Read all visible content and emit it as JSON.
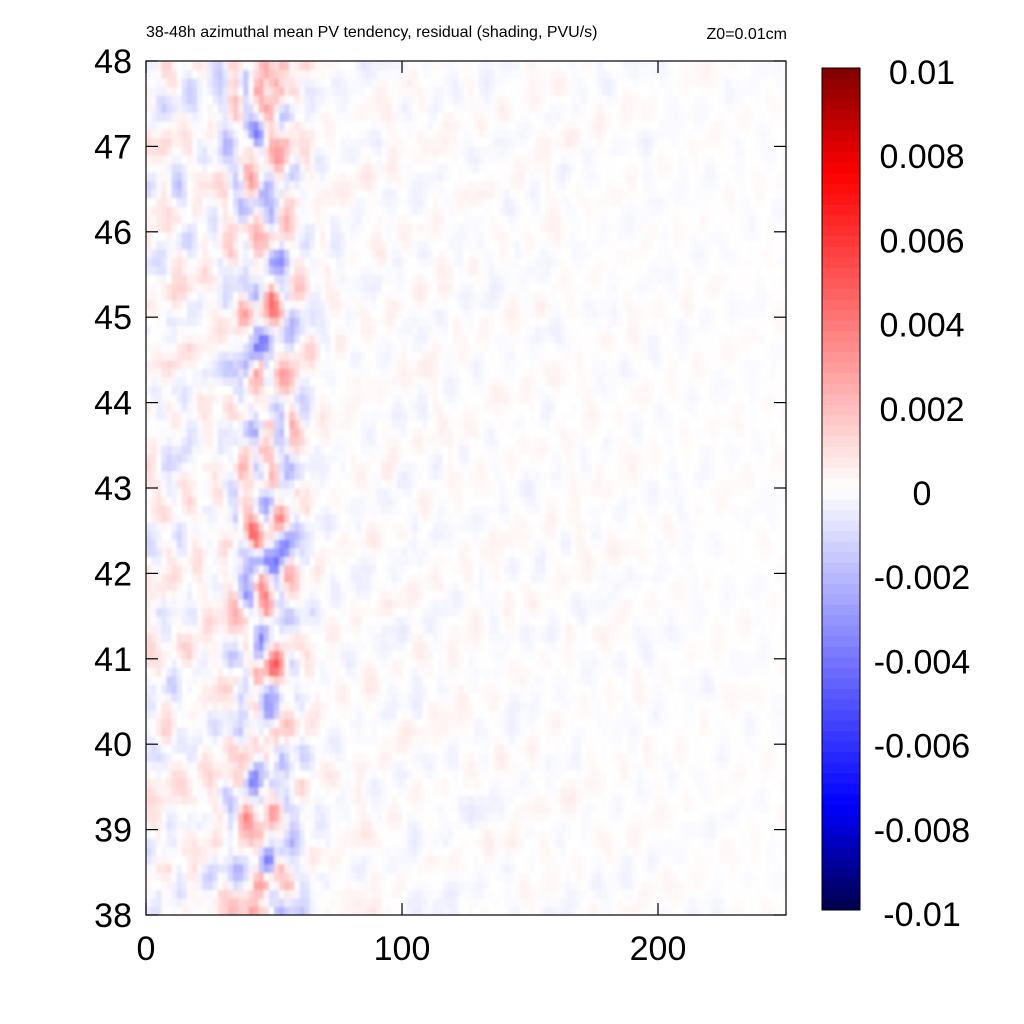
{
  "chart_data": {
    "type": "heatmap",
    "title": "38-48h azimuthal mean PV tendency, residual (shading, PVU/s)",
    "subtitle": "Z0=0.01cm",
    "xlabel": "",
    "ylabel": "",
    "xlim": [
      0,
      250
    ],
    "ylim": [
      38,
      48
    ],
    "x_ticks": [
      0,
      100,
      200
    ],
    "x_tick_labels": [
      "0",
      "100",
      "200"
    ],
    "y_ticks": [
      38,
      39,
      40,
      41,
      42,
      43,
      44,
      45,
      46,
      47,
      48
    ],
    "y_tick_labels": [
      "38",
      "39",
      "40",
      "41",
      "42",
      "43",
      "44",
      "45",
      "46",
      "47",
      "48"
    ],
    "colorbar": {
      "min": -0.01,
      "max": 0.01,
      "ticks": [
        0.01,
        0.008,
        0.006,
        0.004,
        0.002,
        0,
        -0.002,
        -0.004,
        -0.006,
        -0.008,
        -0.01
      ],
      "tick_labels": [
        "0.01",
        "0.008",
        "0.006",
        "0.004",
        "0.002",
        "0",
        "-0.002",
        "-0.004",
        "-0.006",
        "-0.008",
        "-0.01"
      ],
      "colormap": "blue-white-red (diverging)",
      "colors": {
        "min": "#00004c",
        "neg_mid": "#0000ff",
        "zero": "#ffffff",
        "pos_mid": "#ff0000",
        "max": "#7f0000"
      }
    },
    "field_description": "Noisy residual PV tendency; strongest alternating positive/negative values concentrated near radius 30-60, weak noise elsewhere decaying with radius"
  }
}
